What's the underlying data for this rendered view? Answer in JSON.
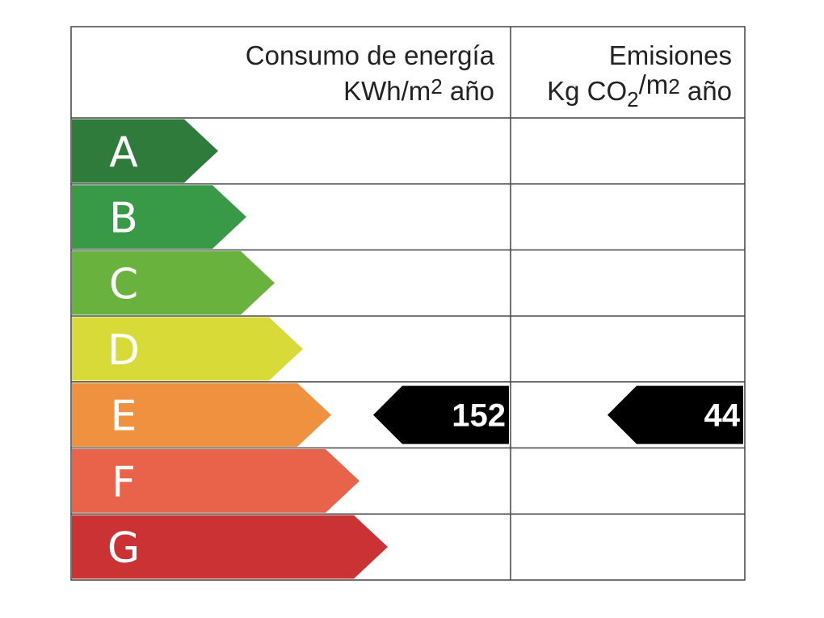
{
  "header": {
    "energy_title": "Consumo de energía",
    "energy_unit": [
      "KWh/m",
      "2",
      " año"
    ],
    "emissions_title": "Emisiones",
    "emissions_unit": [
      "Kg CO",
      "2",
      "/m",
      "2",
      " año"
    ]
  },
  "ratings": [
    {
      "letter": "A",
      "color": "#2e7b3b"
    },
    {
      "letter": "B",
      "color": "#389a46"
    },
    {
      "letter": "C",
      "color": "#6ab23e"
    },
    {
      "letter": "D",
      "color": "#d8db37"
    },
    {
      "letter": "E",
      "color": "#ef913e"
    },
    {
      "letter": "F",
      "color": "#e9634b"
    },
    {
      "letter": "G",
      "color": "#cb3234"
    }
  ],
  "result": {
    "rating": "E",
    "energy": "152",
    "emissions": "44"
  }
}
